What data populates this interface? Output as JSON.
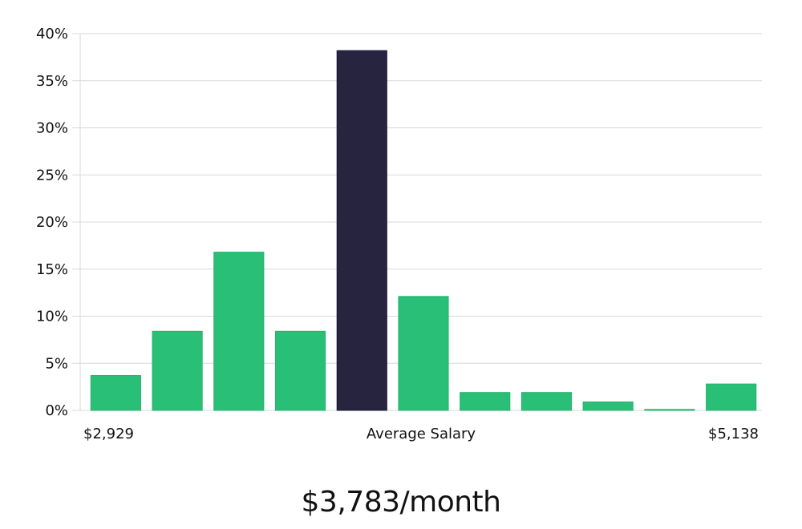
{
  "chart_data": {
    "type": "bar",
    "values": [
      3.7,
      8.4,
      16.8,
      8.4,
      38.2,
      12.1,
      1.9,
      1.9,
      0.9,
      0.1,
      2.8
    ],
    "highlight_index": 4,
    "ylim": [
      0,
      40
    ],
    "yticks": [
      "0%",
      "5%",
      "10%",
      "15%",
      "20%",
      "25%",
      "30%",
      "35%",
      "40%"
    ],
    "x_labels": {
      "min": "$2,929",
      "center": "Average Salary",
      "max": "$5,138"
    },
    "grid": true,
    "colors": {
      "bar": "#2abf76",
      "highlight": "#27243f",
      "grid": "#d9d9d9"
    }
  },
  "headline": "$3,783/month"
}
